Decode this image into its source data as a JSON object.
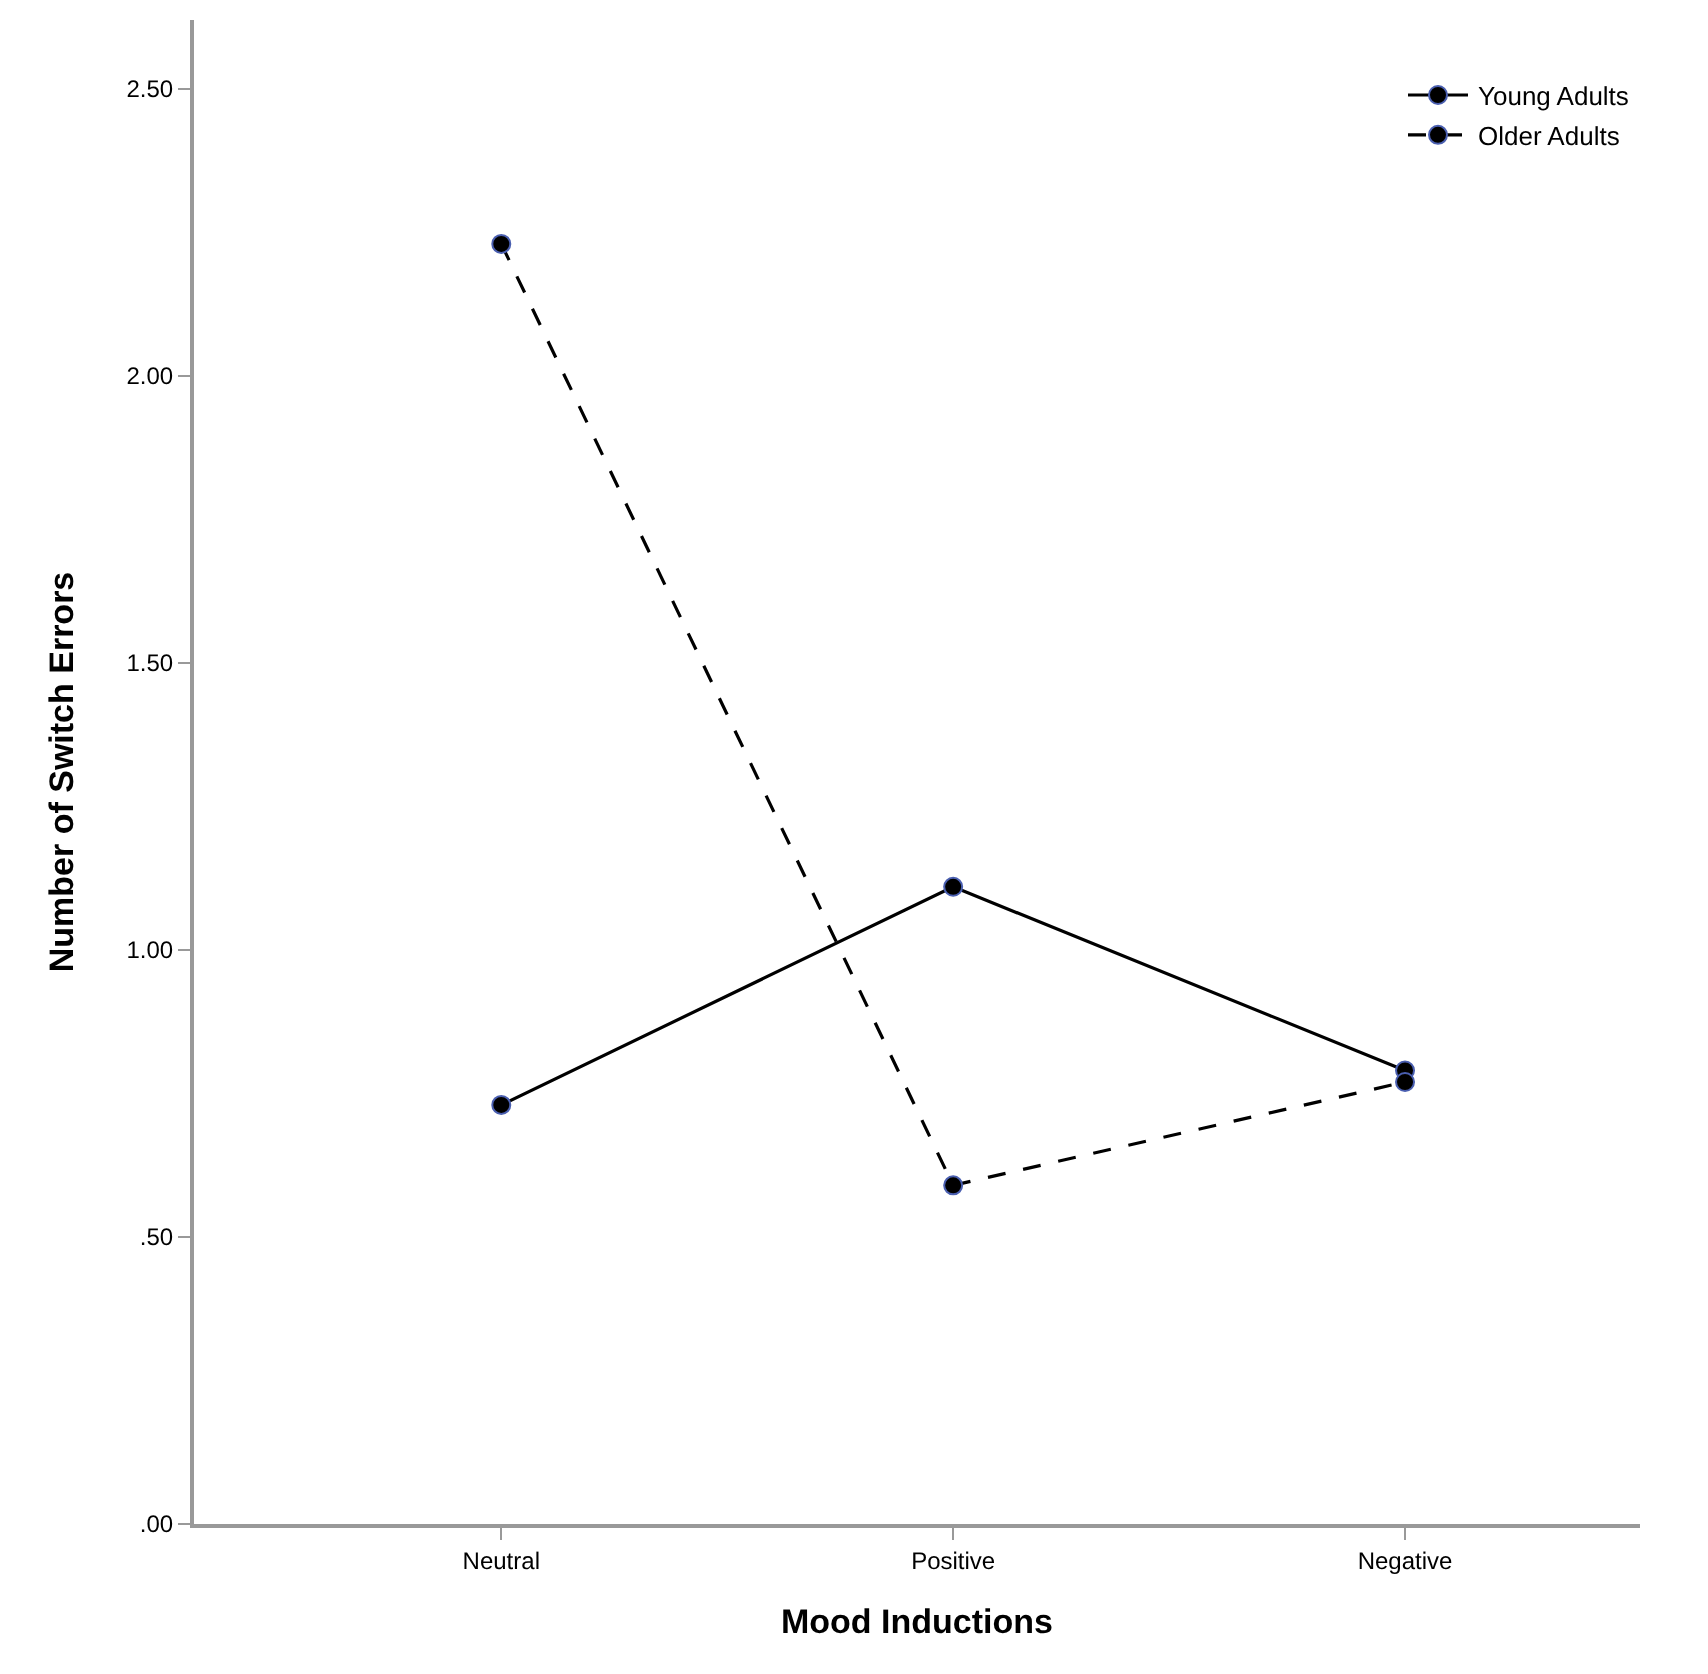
{
  "chart_data": {
    "type": "line",
    "xlabel": "Mood Inductions",
    "ylabel": "Number of Switch Errors",
    "categories": [
      "Neutral",
      "Positive",
      "Negative"
    ],
    "series": [
      {
        "name": "Young Adults",
        "color": "#000000",
        "line_style": "solid",
        "values": [
          0.73,
          1.11,
          0.79
        ]
      },
      {
        "name": "Older Adults",
        "color": "#000000",
        "line_style": "dashed",
        "values": [
          2.23,
          0.59,
          0.77
        ]
      }
    ],
    "ylim": [
      0,
      2.62
    ],
    "yticks": [
      {
        "value": 0,
        "label": ".00"
      },
      {
        "value": 0.5,
        "label": ".50"
      },
      {
        "value": 1,
        "label": "1.00"
      },
      {
        "value": 1.5,
        "label": "1.50"
      },
      {
        "value": 2,
        "label": "2.00"
      },
      {
        "value": 2.5,
        "label": "2.50"
      }
    ],
    "marker": "circle",
    "legend": "top right"
  }
}
